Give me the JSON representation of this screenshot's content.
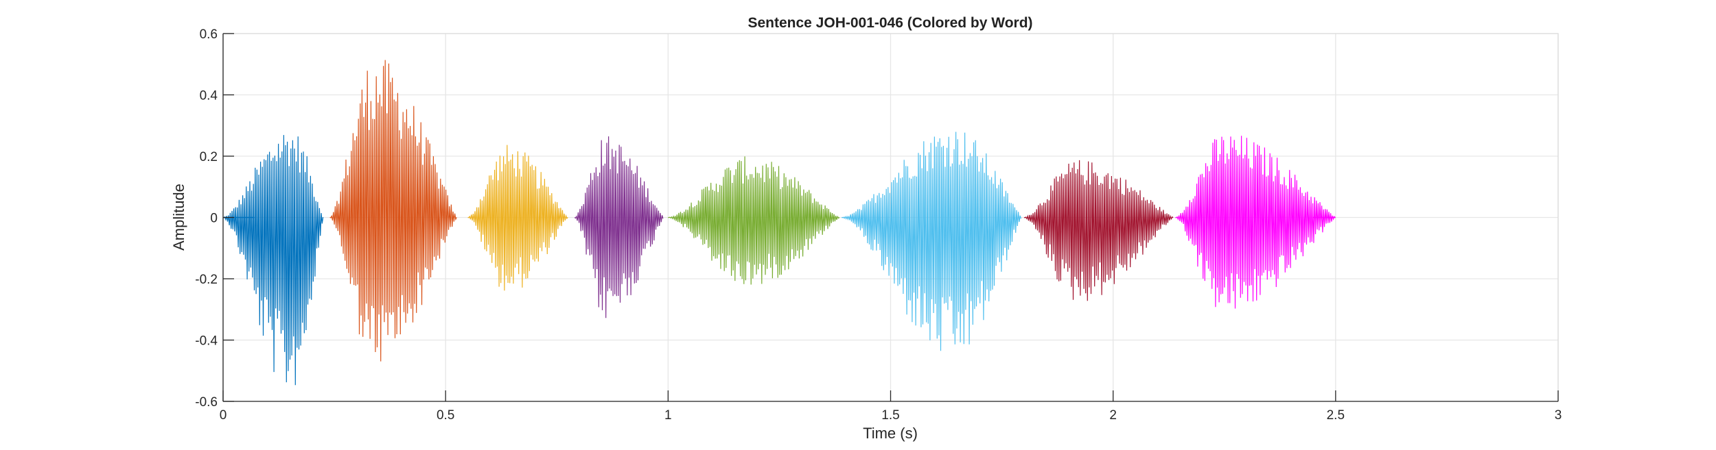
{
  "chart_data": {
    "type": "line",
    "title": "Sentence JOH-001-046 (Colored by Word)",
    "xlabel": "Time (s)",
    "ylabel": "Amplitude",
    "xlim": [
      0,
      3
    ],
    "ylim": [
      -0.6,
      0.6
    ],
    "xticks": [
      0,
      0.5,
      1,
      1.5,
      2,
      2.5,
      3
    ],
    "xtick_labels": [
      "0",
      "0.5",
      "1",
      "1.5",
      "2",
      "2.5",
      "3"
    ],
    "yticks": [
      0.6,
      0.4,
      0.2,
      0,
      -0.2,
      -0.4,
      -0.6
    ],
    "ytick_labels": [
      "0.6",
      "0.4",
      "0.2",
      "0",
      "-0.2",
      "-0.4",
      "-0.6"
    ],
    "grid": true,
    "series": [
      {
        "color": "#0072BD",
        "start": 0.0,
        "end": 0.225,
        "peak_time": 0.15,
        "max": 0.3,
        "min": -0.58
      },
      {
        "color": "#D95319",
        "start": 0.24,
        "end": 0.525,
        "peak_time": 0.34,
        "max": 0.53,
        "min": -0.49
      },
      {
        "color": "#EDB120",
        "start": 0.55,
        "end": 0.775,
        "peak_time": 0.64,
        "max": 0.24,
        "min": -0.25
      },
      {
        "color": "#7E2F8E",
        "start": 0.79,
        "end": 0.99,
        "peak_time": 0.86,
        "max": 0.27,
        "min": -0.34
      },
      {
        "color": "#77AC30",
        "start": 1.0,
        "end": 1.385,
        "peak_time": 1.18,
        "max": 0.2,
        "min": -0.23
      },
      {
        "color": "#4DBEEE",
        "start": 1.39,
        "end": 1.795,
        "peak_time": 1.64,
        "max": 0.3,
        "min": -0.47
      },
      {
        "color": "#A2142F",
        "start": 1.8,
        "end": 2.135,
        "peak_time": 1.92,
        "max": 0.19,
        "min": -0.28
      },
      {
        "color": "#FF00FF",
        "start": 2.14,
        "end": 2.5,
        "peak_time": 2.25,
        "max": 0.28,
        "min": -0.32
      }
    ]
  }
}
